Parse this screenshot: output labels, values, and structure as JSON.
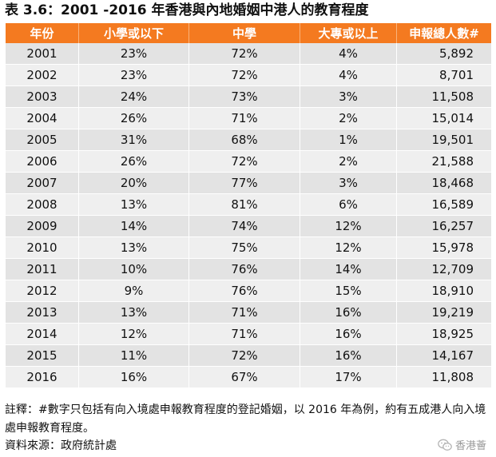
{
  "title": "表 3.6：2001 -2016 年香港與內地婚姻中港人的教育程度",
  "table": {
    "headers": [
      "年份",
      "小學或以下",
      "中學",
      "大專或以上",
      "申報總人數#"
    ],
    "rows": [
      [
        "2001",
        "23%",
        "72%",
        "4%",
        "5,892"
      ],
      [
        "2002",
        "23%",
        "72%",
        "4%",
        "8,701"
      ],
      [
        "2003",
        "24%",
        "73%",
        "3%",
        "11,508"
      ],
      [
        "2004",
        "26%",
        "71%",
        "2%",
        "15,014"
      ],
      [
        "2005",
        "31%",
        "68%",
        "1%",
        "19,501"
      ],
      [
        "2006",
        "26%",
        "72%",
        "2%",
        "21,588"
      ],
      [
        "2007",
        "20%",
        "77%",
        "3%",
        "18,468"
      ],
      [
        "2008",
        "13%",
        "81%",
        "6%",
        "16,589"
      ],
      [
        "2009",
        "14%",
        "74%",
        "12%",
        "16,257"
      ],
      [
        "2010",
        "13%",
        "75%",
        "12%",
        "15,978"
      ],
      [
        "2011",
        "10%",
        "76%",
        "14%",
        "12,709"
      ],
      [
        "2012",
        "9%",
        "76%",
        "15%",
        "18,910"
      ],
      [
        "2013",
        "13%",
        "71%",
        "16%",
        "19,219"
      ],
      [
        "2014",
        "12%",
        "71%",
        "16%",
        "18,925"
      ],
      [
        "2015",
        "11%",
        "72%",
        "16%",
        "14,167"
      ],
      [
        "2016",
        "16%",
        "67%",
        "17%",
        "11,808"
      ]
    ]
  },
  "note": "註釋：#數字只包括有向入境處申報教育程度的登記婚姻，以 2016 年為例，約有五成港人向入境處申報教育程度。",
  "source": "資料來源：政府統計處",
  "watermark": {
    "icon": "wechat-icon",
    "text": "香港薈"
  },
  "colors": {
    "header_bg": "#f47a20",
    "row_odd": "#e3e3e3",
    "row_even": "#efefef"
  }
}
